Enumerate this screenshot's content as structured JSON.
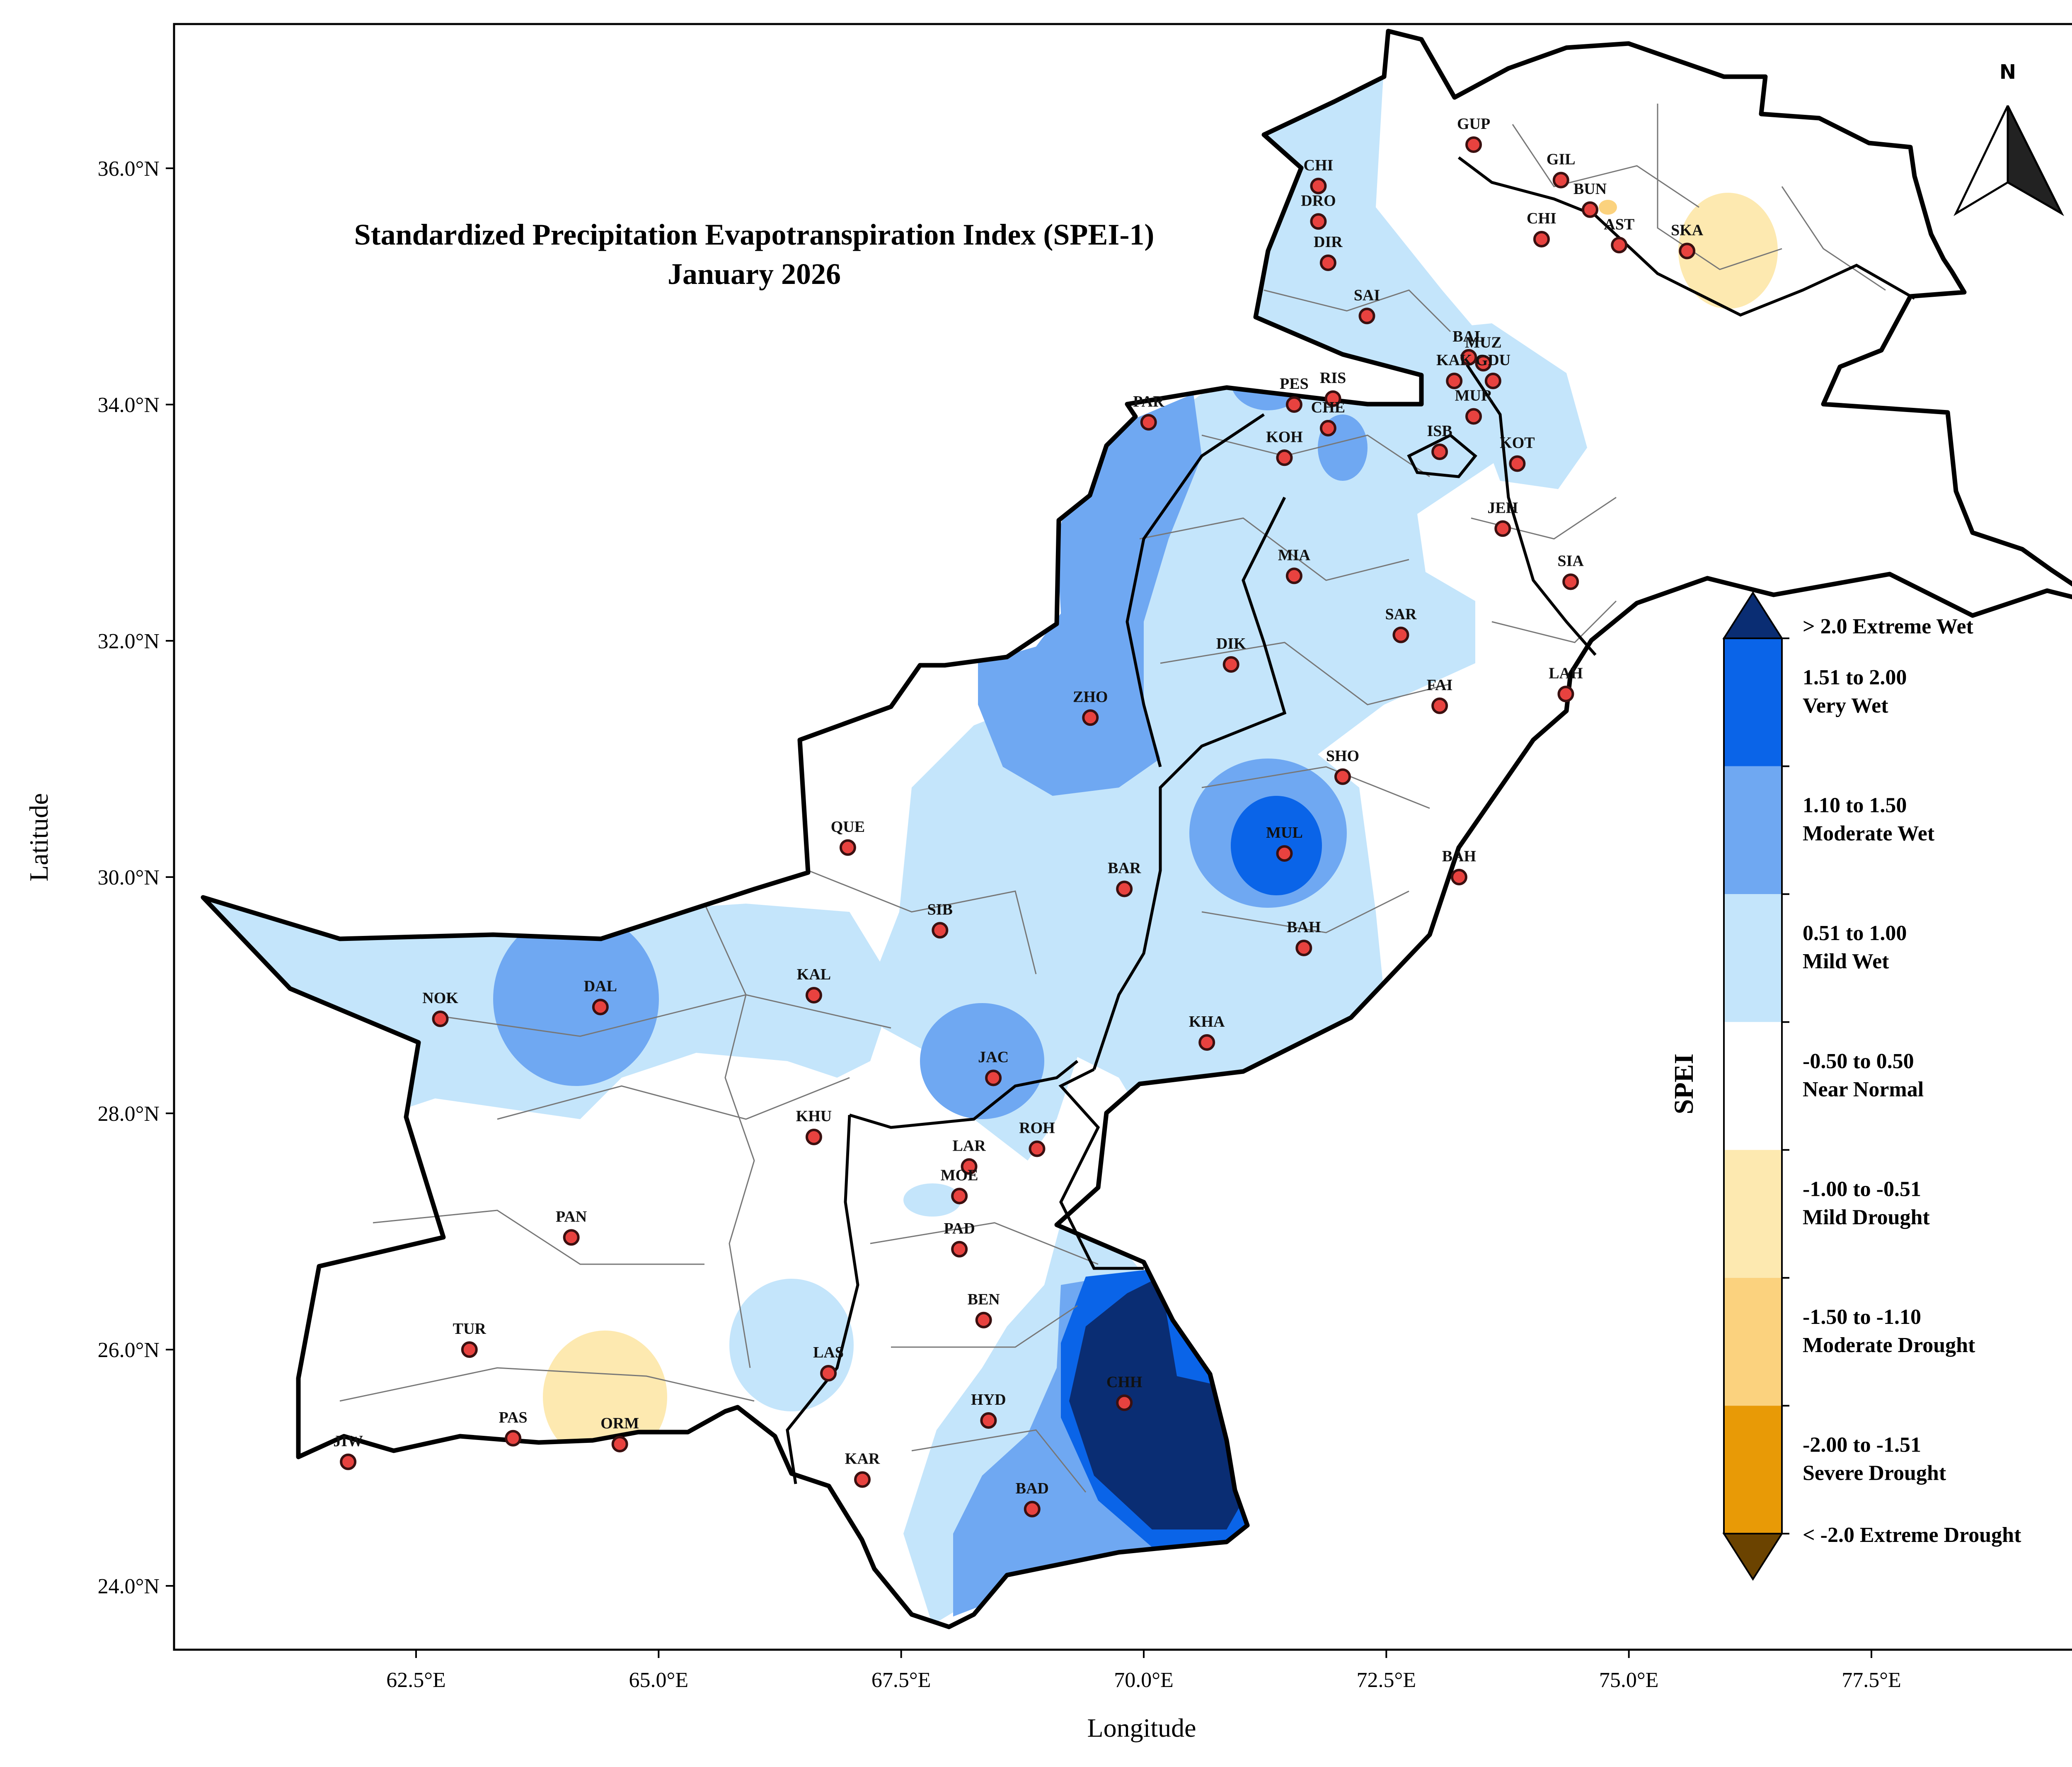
{
  "map": {
    "title_line1": "Standardized Precipitation Evapotranspiration Index (SPEI-1)",
    "title_line2": "January 2026",
    "xlabel": "Longitude",
    "ylabel": "Latitude",
    "north_label": "N",
    "x_ticks": [
      {
        "value": 62.5,
        "label": "62.5°E"
      },
      {
        "value": 65.0,
        "label": "65.0°E"
      },
      {
        "value": 67.5,
        "label": "67.5°E"
      },
      {
        "value": 70.0,
        "label": "70.0°E"
      },
      {
        "value": 72.5,
        "label": "72.5°E"
      },
      {
        "value": 75.0,
        "label": "75.0°E"
      },
      {
        "value": 77.5,
        "label": "77.5°E"
      }
    ],
    "y_ticks": [
      {
        "value": 24.0,
        "label": "24.0°N"
      },
      {
        "value": 26.0,
        "label": "26.0°N"
      },
      {
        "value": 28.0,
        "label": "28.0°N"
      },
      {
        "value": 30.0,
        "label": "30.0°N"
      },
      {
        "value": 32.0,
        "label": "32.0°N"
      },
      {
        "value": 34.0,
        "label": "34.0°N"
      },
      {
        "value": 36.0,
        "label": "36.0°N"
      }
    ],
    "colors": {
      "extreme_wet": "#0a2d73",
      "very_wet": "#0a64e8",
      "moderate_wet": "#6fa8f2",
      "mild_wet": "#c4e5fb",
      "near_normal": "#ffffff",
      "mild_drought": "#fde9b0",
      "moderate_drought": "#fbd27e",
      "severe_drought": "#e89a06",
      "extreme_drought": "#6b4300",
      "station_fill": "#e8423f"
    }
  },
  "legend": {
    "title": "SPEI",
    "classes": [
      {
        "label_line1": "> 2.0 Extreme Wet",
        "label_line2": "",
        "color": "#0a2d73"
      },
      {
        "label_line1": "1.51 to 2.00",
        "label_line2": "Very Wet",
        "color": "#0a64e8"
      },
      {
        "label_line1": "1.10 to 1.50",
        "label_line2": "Moderate Wet",
        "color": "#6fa8f2"
      },
      {
        "label_line1": "0.51 to 1.00",
        "label_line2": "Mild Wet",
        "color": "#c4e5fb"
      },
      {
        "label_line1": "-0.50 to 0.50",
        "label_line2": "Near Normal",
        "color": "#ffffff"
      },
      {
        "label_line1": "-1.00 to -0.51",
        "label_line2": "Mild Drought",
        "color": "#fde9b0"
      },
      {
        "label_line1": "-1.50 to -1.10",
        "label_line2": "Moderate Drought",
        "color": "#fbd27e"
      },
      {
        "label_line1": "-2.00 to -1.51",
        "label_line2": "Severe Drought",
        "color": "#e89a06"
      },
      {
        "label_line1": "< -2.0 Extreme Drought",
        "label_line2": "",
        "color": "#6b4300"
      }
    ]
  },
  "stations": [
    {
      "code": "GUP",
      "lon": 73.4,
      "lat": 36.2
    },
    {
      "code": "GIL",
      "lon": 74.3,
      "lat": 35.9
    },
    {
      "code": "BUN",
      "lon": 74.6,
      "lat": 35.65
    },
    {
      "code": "CHI",
      "lon": 74.1,
      "lat": 35.4
    },
    {
      "code": "AST",
      "lon": 74.9,
      "lat": 35.35
    },
    {
      "code": "SKA",
      "lon": 75.6,
      "lat": 35.3
    },
    {
      "code": "CHI",
      "lon": 71.8,
      "lat": 35.85
    },
    {
      "code": "DRO",
      "lon": 71.8,
      "lat": 35.55
    },
    {
      "code": "DIR",
      "lon": 71.9,
      "lat": 35.2
    },
    {
      "code": "SAI",
      "lon": 72.3,
      "lat": 34.75
    },
    {
      "code": "BAL",
      "lon": 73.35,
      "lat": 34.4
    },
    {
      "code": "MUZ",
      "lon": 73.5,
      "lat": 34.35
    },
    {
      "code": "KAK",
      "lon": 73.2,
      "lat": 34.2
    },
    {
      "code": "GDU",
      "lon": 73.6,
      "lat": 34.2
    },
    {
      "code": "MUR",
      "lon": 73.4,
      "lat": 33.9
    },
    {
      "code": "PES",
      "lon": 71.55,
      "lat": 34.0
    },
    {
      "code": "RIS",
      "lon": 71.95,
      "lat": 34.05
    },
    {
      "code": "CHE",
      "lon": 71.9,
      "lat": 33.8
    },
    {
      "code": "ISB",
      "lon": 73.05,
      "lat": 33.6
    },
    {
      "code": "KOT",
      "lon": 73.85,
      "lat": 33.5
    },
    {
      "code": "KOH",
      "lon": 71.45,
      "lat": 33.55
    },
    {
      "code": "PAR",
      "lon": 70.05,
      "lat": 33.85
    },
    {
      "code": "JEH",
      "lon": 73.7,
      "lat": 32.95
    },
    {
      "code": "MIA",
      "lon": 71.55,
      "lat": 32.55
    },
    {
      "code": "SIA",
      "lon": 74.4,
      "lat": 32.5
    },
    {
      "code": "SAR",
      "lon": 72.65,
      "lat": 32.05
    },
    {
      "code": "DIK",
      "lon": 70.9,
      "lat": 31.8
    },
    {
      "code": "FAI",
      "lon": 73.05,
      "lat": 31.45
    },
    {
      "code": "LAH",
      "lon": 74.35,
      "lat": 31.55
    },
    {
      "code": "ZHO",
      "lon": 69.45,
      "lat": 31.35
    },
    {
      "code": "SHO",
      "lon": 72.05,
      "lat": 30.85
    },
    {
      "code": "QUE",
      "lon": 66.95,
      "lat": 30.25
    },
    {
      "code": "MUL",
      "lon": 71.45,
      "lat": 30.2
    },
    {
      "code": "BAH",
      "lon": 73.25,
      "lat": 30.0
    },
    {
      "code": "BAR",
      "lon": 69.8,
      "lat": 29.9
    },
    {
      "code": "SIB",
      "lon": 67.9,
      "lat": 29.55
    },
    {
      "code": "BAH",
      "lon": 71.65,
      "lat": 29.4
    },
    {
      "code": "NOK",
      "lon": 62.75,
      "lat": 28.8
    },
    {
      "code": "DAL",
      "lon": 64.4,
      "lat": 28.9
    },
    {
      "code": "KAL",
      "lon": 66.6,
      "lat": 29.0
    },
    {
      "code": "KHA",
      "lon": 70.65,
      "lat": 28.6
    },
    {
      "code": "JAC",
      "lon": 68.45,
      "lat": 28.3
    },
    {
      "code": "KHU",
      "lon": 66.6,
      "lat": 27.8
    },
    {
      "code": "ROH",
      "lon": 68.9,
      "lat": 27.7
    },
    {
      "code": "LAR",
      "lon": 68.2,
      "lat": 27.55
    },
    {
      "code": "MOE",
      "lon": 68.1,
      "lat": 27.3
    },
    {
      "code": "PAN",
      "lon": 64.1,
      "lat": 26.95
    },
    {
      "code": "PAD",
      "lon": 68.1,
      "lat": 26.85
    },
    {
      "code": "BEN",
      "lon": 68.35,
      "lat": 26.25
    },
    {
      "code": "TUR",
      "lon": 63.05,
      "lat": 26.0
    },
    {
      "code": "LAS",
      "lon": 66.75,
      "lat": 25.8
    },
    {
      "code": "CHH",
      "lon": 69.8,
      "lat": 25.55
    },
    {
      "code": "HYD",
      "lon": 68.4,
      "lat": 25.4
    },
    {
      "code": "PAS",
      "lon": 63.5,
      "lat": 25.25
    },
    {
      "code": "ORM",
      "lon": 64.6,
      "lat": 25.2
    },
    {
      "code": "JIW",
      "lon": 61.8,
      "lat": 25.05
    },
    {
      "code": "KAR",
      "lon": 67.1,
      "lat": 24.9
    },
    {
      "code": "BAD",
      "lon": 68.85,
      "lat": 24.65
    }
  ]
}
